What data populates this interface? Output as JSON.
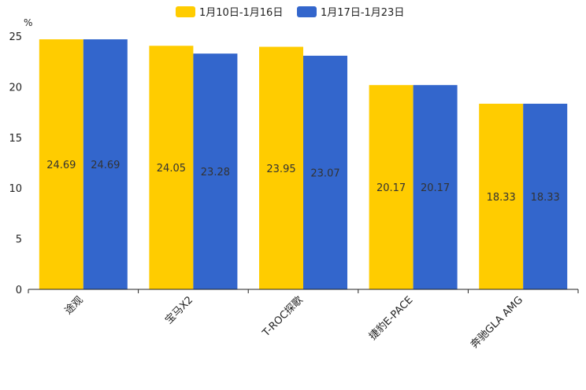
{
  "chart_data": {
    "type": "bar",
    "unit_label": "%",
    "categories": [
      "途观",
      "宝马X2",
      "T-ROC探歌",
      "捷豹E-PACE",
      "奔驰GLA AMG"
    ],
    "series": [
      {
        "name": "1月10日-1月16日",
        "color": "#ffcc00",
        "values": [
          24.69,
          24.05,
          23.95,
          20.17,
          18.33
        ]
      },
      {
        "name": "1月17日-1月23日",
        "color": "#3366cc",
        "values": [
          24.69,
          23.28,
          23.07,
          20.17,
          18.33
        ]
      }
    ],
    "ylim": [
      0,
      25
    ],
    "yticks": [
      0,
      5,
      10,
      15,
      20,
      25
    ],
    "legend_position": "top-center",
    "grid": false
  }
}
